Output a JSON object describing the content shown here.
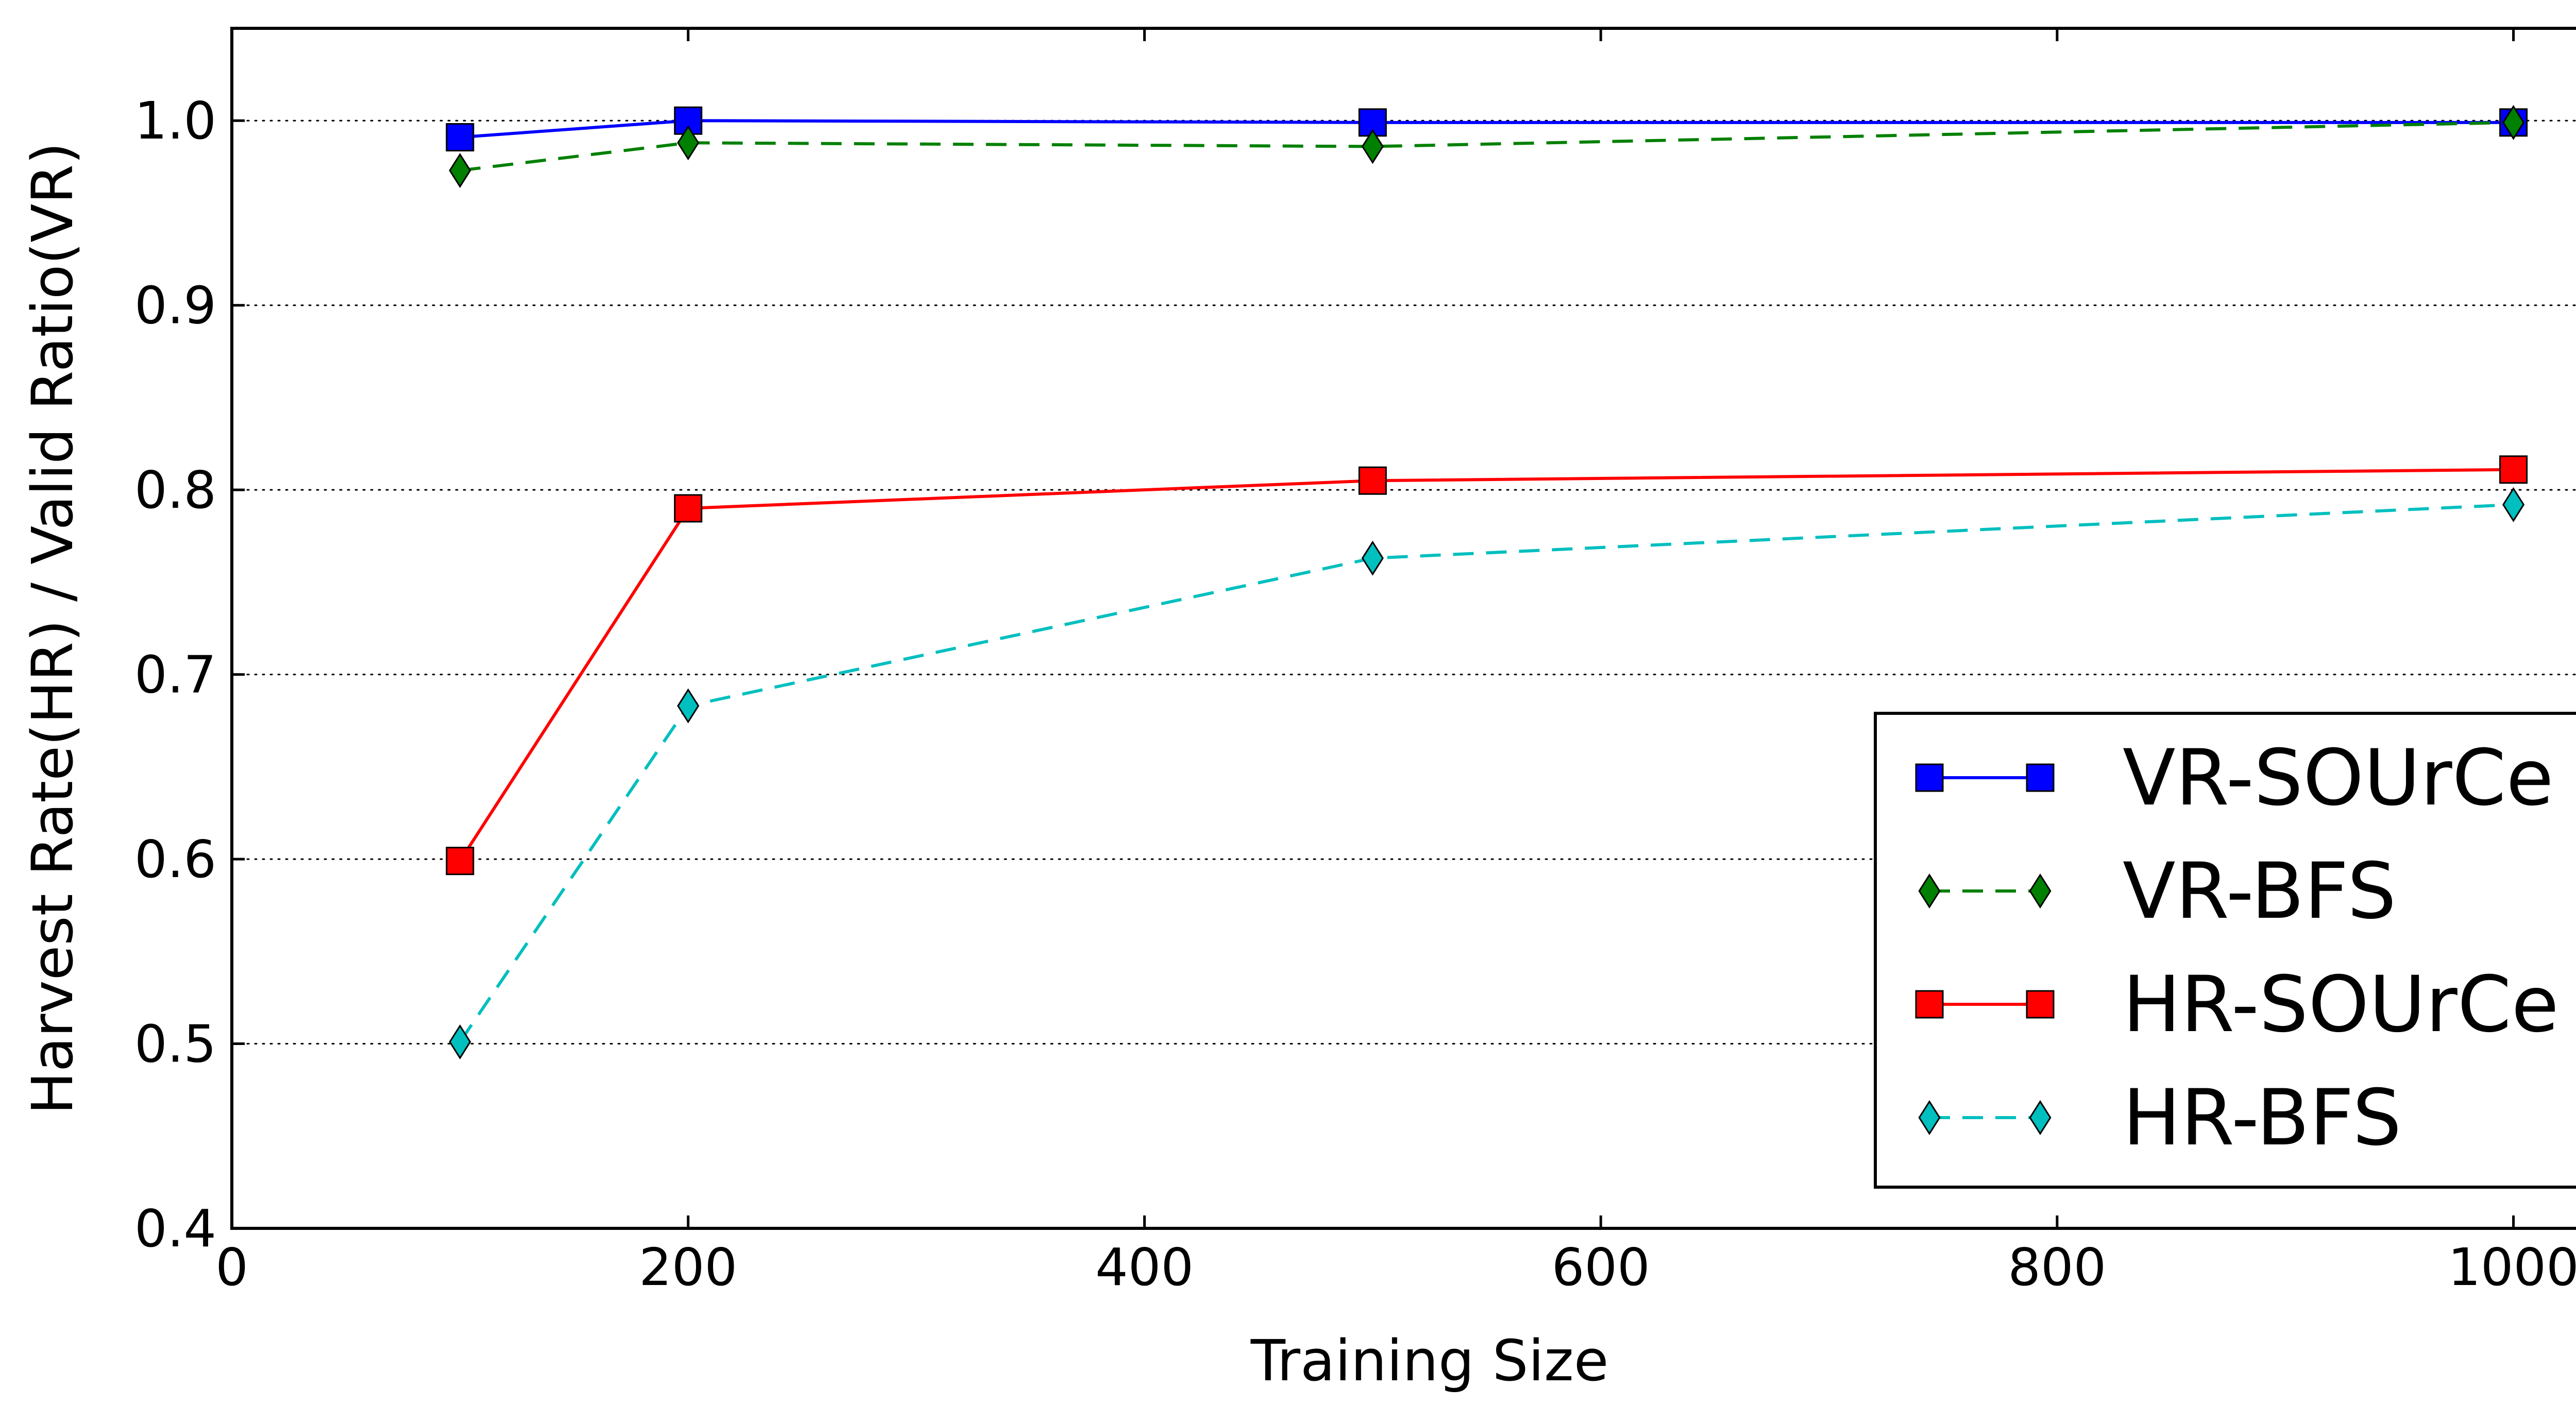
{
  "chart_data": {
    "type": "line",
    "xlabel": "Training Size",
    "ylabel": "Harvest Rate(HR) / Valid Ratio(VR)",
    "xlim": [
      0,
      1050
    ],
    "ylim": [
      0.4,
      1.05
    ],
    "xticks": [
      0,
      200,
      400,
      600,
      800,
      1000
    ],
    "xtick_labels": [
      "0",
      "200",
      "400",
      "600",
      "800",
      "1000"
    ],
    "yticks": [
      0.4,
      0.5,
      0.6,
      0.7,
      0.8,
      0.9,
      1.0
    ],
    "ytick_labels": [
      "0.4",
      "0.5",
      "0.6",
      "0.7",
      "0.8",
      "0.9",
      "1.0"
    ],
    "grid": "y-dotted",
    "legend_position": "lower-right",
    "x": [
      100,
      200,
      500,
      1000
    ],
    "series": [
      {
        "name": "VR-SOUrCe",
        "values": [
          0.991,
          1.0,
          0.999,
          0.999
        ],
        "color": "#0000ff",
        "marker": "square",
        "dash": "solid"
      },
      {
        "name": "VR-BFS",
        "values": [
          0.973,
          0.988,
          0.986,
          0.999
        ],
        "color": "#008000",
        "marker": "diamond",
        "dash": "dashed"
      },
      {
        "name": "HR-SOUrCe",
        "values": [
          0.599,
          0.79,
          0.805,
          0.811
        ],
        "color": "#ff0000",
        "marker": "square",
        "dash": "solid"
      },
      {
        "name": "HR-BFS",
        "values": [
          0.501,
          0.683,
          0.763,
          0.792
        ],
        "color": "#00bfbf",
        "marker": "diamond",
        "dash": "dashed"
      }
    ]
  }
}
